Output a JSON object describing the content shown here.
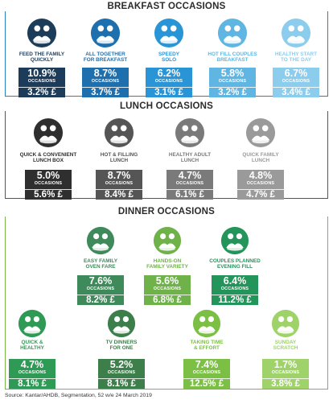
{
  "breakfast": {
    "title": "BREAKFAST OCCASIONS",
    "items": [
      {
        "label1": "FEED THE FAMILY",
        "label2": "QUICKLY",
        "pct": "10.9%",
        "occ": "OCCASIONS",
        "value": "3.2% £",
        "color": "#1d3c5a",
        "icon": "family-breakfast-icon"
      },
      {
        "label1": "ALL TOGETHER",
        "label2": "FOR BREAKFAST",
        "pct": "8.7%",
        "occ": "OCCASIONS",
        "value": "3.7% £",
        "color": "#1e6fae",
        "icon": "family-together-icon"
      },
      {
        "label1": "SPEEDY",
        "label2": "SOLO",
        "pct": "6.2%",
        "occ": "OCCASIONS",
        "value": "3.1% £",
        "color": "#2a95d6",
        "icon": "clock-person-icon"
      },
      {
        "label1": "HOT FILL COUPLES",
        "label2": "BREAKFAST",
        "pct": "5.8%",
        "occ": "OCCASIONS",
        "value": "3.2% £",
        "color": "#5fb6e2",
        "icon": "couple-breakfast-icon"
      },
      {
        "label1": "HEALTHY START",
        "label2": "TO THE DAY",
        "pct": "6.7%",
        "occ": "OCCASIONS",
        "value": "3.4% £",
        "color": "#8ccdee",
        "icon": "healthy-start-icon"
      }
    ]
  },
  "lunch": {
    "title": "LUNCH OCCASIONS",
    "items": [
      {
        "label1": "QUICK & CONVENIENT",
        "label2": "LUNCH BOX",
        "pct": "5.0%",
        "occ": "OCCASIONS",
        "value": "5.6% £",
        "color": "#2f2f2f",
        "icon": "lunch-box-icon"
      },
      {
        "label1": "HOT & FILLING",
        "label2": "LUNCH",
        "pct": "8.7%",
        "occ": "OCCASIONS",
        "value": "8.4% £",
        "color": "#555555",
        "icon": "hot-lunch-icon"
      },
      {
        "label1": "HEALTHY ADULT",
        "label2": "LUNCH",
        "pct": "4.7%",
        "occ": "OCCASIONS",
        "value": "6.1% £",
        "color": "#7a7a7a",
        "icon": "healthy-adult-icon"
      },
      {
        "label1": "QUICK FAMILY",
        "label2": "LUNCH",
        "pct": "4.8%",
        "occ": "OCCASIONS",
        "value": "4.7% £",
        "color": "#9a9a9a",
        "icon": "family-lunch-icon"
      }
    ]
  },
  "dinner": {
    "title": "DINNER OCCASIONS",
    "row1": [
      {
        "label1": "EASY FAMILY",
        "label2": "OVEN FARE",
        "pct": "7.6%",
        "occ": "OCCASIONS",
        "value": "8.2% £",
        "color": "#3f8a5a",
        "icon": "oven-icon"
      },
      {
        "label1": "HANDS-ON",
        "label2": "FAMILY VARIETY",
        "pct": "5.6%",
        "occ": "OCCASIONS",
        "value": "6.8% £",
        "color": "#6fb24a",
        "icon": "family-variety-icon"
      },
      {
        "label1": "COUPLES PLANNED",
        "label2": "EVENING FILL",
        "pct": "6.4%",
        "occ": "OCCASIONS",
        "value": "11.2% £",
        "color": "#23945a",
        "icon": "couple-dinner-icon"
      }
    ],
    "row2": [
      {
        "label1": "QUICK &",
        "label2": "HEALTHY",
        "pct": "4.7%",
        "occ": "OCCASIONS",
        "value": "8.1% £",
        "color": "#2f9a55",
        "icon": "quick-healthy-icon"
      },
      {
        "label1": "TV DINNERS",
        "label2": "FOR ONE",
        "pct": "5.2%",
        "occ": "OCCASIONS",
        "value": "8.1% £",
        "color": "#3d7f4a",
        "icon": "tv-dinner-icon"
      },
      {
        "label1": "TAKING TIME",
        "label2": "& EFFORT",
        "pct": "7.4%",
        "occ": "OCCASIONS",
        "value": "12.5% £",
        "color": "#7cbf45",
        "icon": "cooking-icon"
      },
      {
        "label1": "SUNDAY",
        "label2": "SCRATCH",
        "pct": "1.7%",
        "occ": "OCCASIONS",
        "value": "3.8% £",
        "color": "#9fd36a",
        "icon": "sunday-scratch-icon"
      }
    ]
  },
  "source": "Source: Kantar/AHDB, Segmentation, 52 w/e 24 March 2019"
}
